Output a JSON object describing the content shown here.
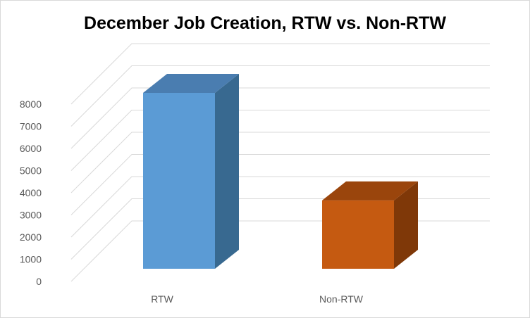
{
  "chart_data": {
    "type": "bar",
    "title": "December Job Creation, RTW vs. Non-RTW",
    "categories": [
      "RTW",
      "Non-RTW"
    ],
    "values": [
      7850,
      3050
    ],
    "xlabel": "",
    "ylabel": "",
    "ylim": [
      0,
      8000
    ],
    "yticks": [
      "0",
      "1000",
      "2000",
      "3000",
      "4000",
      "5000",
      "6000",
      "7000",
      "8000"
    ],
    "grid": true,
    "legend": "none",
    "style": "3d-column",
    "colors": {
      "RTW": {
        "front": "#5b9bd5",
        "side": "#386990",
        "top": "#4a7db0"
      },
      "Non-RTW": {
        "front": "#c55a11",
        "side": "#7f3808",
        "top": "#9a450c"
      },
      "grid": "#d9d9d9",
      "axis_text": "#595959"
    }
  }
}
